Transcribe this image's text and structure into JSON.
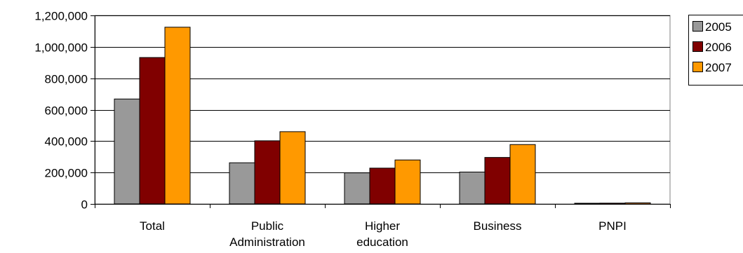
{
  "chart_data": {
    "type": "bar",
    "title": "",
    "xlabel": "",
    "ylabel": "",
    "categories": [
      [
        "Total"
      ],
      [
        "Public",
        "Administration"
      ],
      [
        "Higher",
        "education"
      ],
      [
        "Business"
      ],
      [
        "PNPI"
      ]
    ],
    "series": [
      {
        "name": "2005",
        "color": "#999999",
        "values": [
          668000,
          262000,
          198000,
          203000,
          3000
        ]
      },
      {
        "name": "2006",
        "color": "#800000",
        "values": [
          932000,
          402000,
          228000,
          296000,
          5000
        ]
      },
      {
        "name": "2007",
        "color": "#FF9900",
        "values": [
          1125000,
          460000,
          280000,
          378000,
          7000
        ]
      }
    ],
    "ylim": [
      0,
      1200000
    ],
    "yticks": [
      0,
      200000,
      400000,
      600000,
      800000,
      1000000,
      1200000
    ],
    "ytick_labels": [
      "0",
      "200,000",
      "400,000",
      "600,000",
      "800,000",
      "1,000,000",
      "1,200,000"
    ],
    "grid": true,
    "legend_position": "right"
  }
}
